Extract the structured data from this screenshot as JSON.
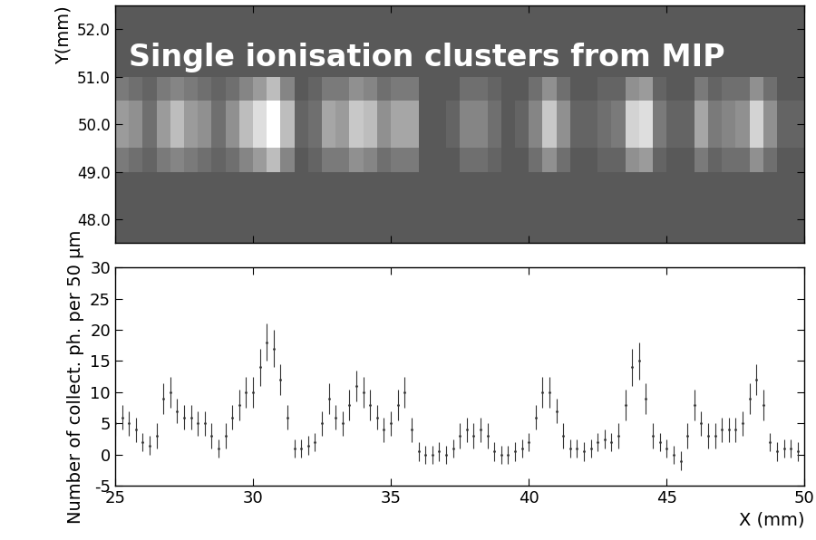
{
  "chart_data": [
    {
      "type": "heatmap",
      "ylabel": "Y(mm)",
      "annotation": "Single ionisation clusters from MIP",
      "x_edges": [
        25,
        25.5,
        26,
        26.5,
        27,
        27.5,
        28,
        28.5,
        29,
        29.5,
        30,
        30.5,
        31,
        31.5,
        32,
        32.5,
        33,
        33.5,
        34,
        34.5,
        35,
        35.5,
        36,
        36.5,
        37,
        37.5,
        38,
        38.5,
        39,
        39.5,
        40,
        40.5,
        41,
        41.5,
        42,
        42.5,
        43,
        43.5,
        44,
        44.5,
        45,
        45.5,
        46,
        46.5,
        47,
        47.5,
        48,
        48.5,
        49,
        49.5,
        50
      ],
      "y_edges": [
        47.5,
        48,
        48.5,
        49,
        49.5,
        50,
        50.5,
        51,
        51.5,
        52,
        52.5
      ],
      "cells": [
        [
          0,
          0,
          0,
          0,
          0,
          0,
          0,
          0,
          0,
          0,
          0,
          0,
          0,
          0,
          0,
          0,
          0,
          0,
          0,
          0,
          0,
          0,
          0,
          0,
          0,
          0,
          0,
          0,
          0,
          0,
          0,
          0,
          0,
          0,
          0,
          0,
          0,
          0,
          0,
          0,
          0,
          0,
          0,
          0,
          0,
          0,
          0,
          0,
          0,
          0
        ],
        [
          0,
          0,
          0,
          0,
          0,
          0,
          0,
          0,
          0,
          0,
          0,
          0,
          0,
          0,
          0,
          0,
          0,
          0,
          0,
          0,
          0,
          0,
          0,
          0,
          0,
          0,
          0,
          0,
          0,
          0,
          0,
          0,
          0,
          0,
          0,
          0,
          0,
          0,
          0,
          0,
          0,
          0,
          0,
          0,
          0,
          0,
          0,
          0,
          0,
          0
        ],
        [
          0,
          0,
          0,
          0,
          0,
          0,
          0,
          0,
          0,
          0,
          0,
          0,
          0,
          0,
          0,
          0,
          0,
          0,
          0,
          0,
          0,
          0,
          0,
          0,
          0,
          0,
          0,
          0,
          0,
          0,
          0,
          0,
          0,
          0,
          0,
          0,
          0,
          0,
          0,
          0,
          0,
          0,
          0,
          0,
          0,
          0,
          0,
          0,
          0,
          0
        ],
        [
          3,
          2,
          1,
          3,
          4,
          3,
          2,
          1,
          2,
          4,
          6,
          9,
          4,
          0,
          1,
          3,
          3,
          5,
          4,
          2,
          3,
          3,
          0,
          0,
          0,
          2,
          2,
          1,
          0,
          0,
          2,
          5,
          2,
          0,
          0,
          1,
          1,
          5,
          6,
          1,
          0,
          0,
          3,
          1,
          2,
          2,
          5,
          2,
          0,
          0
        ],
        [
          6,
          5,
          2,
          6,
          9,
          6,
          5,
          2,
          5,
          9,
          12,
          18,
          9,
          1,
          2,
          7,
          6,
          10,
          9,
          5,
          7,
          7,
          0,
          0,
          1,
          4,
          4,
          2,
          0,
          1,
          4,
          10,
          5,
          1,
          1,
          2,
          3,
          11,
          12,
          3,
          1,
          1,
          7,
          3,
          4,
          5,
          11,
          5,
          1,
          1
        ],
        [
          6,
          5,
          2,
          6,
          9,
          6,
          5,
          2,
          5,
          9,
          12,
          18,
          9,
          1,
          2,
          7,
          6,
          10,
          9,
          5,
          7,
          7,
          0,
          0,
          1,
          4,
          4,
          2,
          0,
          1,
          4,
          10,
          5,
          1,
          1,
          2,
          3,
          11,
          12,
          3,
          1,
          1,
          7,
          3,
          4,
          5,
          11,
          5,
          1,
          1
        ],
        [
          3,
          2,
          1,
          3,
          4,
          3,
          2,
          1,
          2,
          4,
          6,
          9,
          4,
          0,
          1,
          3,
          3,
          5,
          4,
          2,
          3,
          3,
          0,
          0,
          0,
          2,
          2,
          1,
          0,
          0,
          2,
          5,
          2,
          0,
          0,
          1,
          1,
          5,
          6,
          1,
          0,
          0,
          3,
          1,
          2,
          2,
          5,
          2,
          0,
          0
        ],
        [
          0,
          0,
          0,
          0,
          0,
          0,
          0,
          0,
          0,
          0,
          0,
          0,
          0,
          0,
          0,
          0,
          0,
          0,
          0,
          0,
          0,
          0,
          0,
          0,
          0,
          0,
          0,
          0,
          0,
          0,
          0,
          0,
          0,
          0,
          0,
          0,
          0,
          0,
          0,
          0,
          0,
          0,
          0,
          0,
          0,
          0,
          0,
          0,
          0,
          0
        ],
        [
          0,
          0,
          0,
          0,
          0,
          0,
          0,
          0,
          0,
          0,
          0,
          0,
          0,
          0,
          0,
          0,
          0,
          0,
          0,
          0,
          0,
          0,
          0,
          0,
          0,
          0,
          0,
          0,
          0,
          0,
          0,
          0,
          0,
          0,
          0,
          0,
          0,
          0,
          0,
          0,
          0,
          0,
          0,
          0,
          0,
          0,
          0,
          0,
          0,
          0
        ],
        [
          0,
          0,
          0,
          0,
          0,
          0,
          0,
          0,
          0,
          0,
          0,
          0,
          0,
          0,
          0,
          0,
          0,
          0,
          0,
          0,
          0,
          0,
          0,
          0,
          0,
          0,
          0,
          0,
          0,
          0,
          0,
          0,
          0,
          0,
          0,
          0,
          0,
          0,
          0,
          0,
          0,
          0,
          0,
          0,
          0,
          0,
          0,
          0,
          0,
          0
        ]
      ],
      "color_range": [
        -8,
        15
      ],
      "xlim": [
        25,
        50
      ],
      "ylim": [
        47.5,
        52.5
      ],
      "xticks": [
        25,
        30,
        35,
        40,
        45,
        50
      ],
      "yticks": [
        {
          "value": 48,
          "label": "48.0"
        },
        {
          "value": 49,
          "label": "49.0"
        },
        {
          "value": 50,
          "label": "50.0"
        },
        {
          "value": 51,
          "label": "51.0"
        },
        {
          "value": 52,
          "label": "52.0"
        }
      ],
      "tick_labels": "y"
    },
    {
      "type": "errorbar",
      "xlabel": "X (mm)",
      "ylabel": "Number of collect. ph. per 50 µm",
      "color": "#333333",
      "marker": "point",
      "x": [
        25,
        25.25,
        25.5,
        25.75,
        26,
        26.25,
        26.5,
        26.75,
        27,
        27.25,
        27.5,
        27.75,
        28,
        28.25,
        28.5,
        28.75,
        29,
        29.25,
        29.5,
        29.75,
        30,
        30.25,
        30.5,
        30.75,
        31,
        31.25,
        31.5,
        31.75,
        32,
        32.25,
        32.5,
        32.75,
        33,
        33.25,
        33.5,
        33.75,
        34,
        34.25,
        34.5,
        34.75,
        35,
        35.25,
        35.5,
        35.75,
        36,
        36.25,
        36.5,
        36.75,
        37,
        37.25,
        37.5,
        37.75,
        38,
        38.25,
        38.5,
        38.75,
        39,
        39.25,
        39.5,
        39.75,
        40,
        40.25,
        40.5,
        40.75,
        41,
        41.25,
        41.5,
        41.75,
        42,
        42.25,
        42.5,
        42.75,
        43,
        43.25,
        43.5,
        43.75,
        44,
        44.25,
        44.5,
        44.75,
        45,
        45.25,
        45.5,
        45.75,
        46,
        46.25,
        46.5,
        46.75,
        47,
        47.25,
        47.5,
        47.75,
        48,
        48.25,
        48.5,
        48.75,
        49,
        49.25,
        49.5,
        49.75
      ],
      "values": [
        5,
        6,
        5,
        4,
        2,
        1.5,
        3,
        9,
        10,
        7,
        6,
        6,
        5,
        5,
        3,
        1,
        3,
        6,
        8,
        10,
        10,
        14,
        18,
        17,
        12,
        6,
        1,
        1,
        1.5,
        2,
        5,
        9,
        6,
        5,
        8,
        11,
        10,
        8,
        6,
        4,
        5,
        8,
        10,
        4,
        0.5,
        0,
        0,
        0.5,
        0,
        1,
        3,
        4,
        3,
        4,
        3,
        0.5,
        0,
        0,
        0.5,
        1,
        2,
        6,
        10,
        10,
        7,
        3,
        1,
        1,
        0.5,
        1,
        2,
        2.5,
        2,
        3,
        8,
        14,
        15,
        9,
        3,
        2,
        1,
        0,
        -1,
        3,
        8,
        5,
        3,
        3,
        4,
        4,
        4,
        5,
        9,
        12,
        8,
        2,
        0.5,
        1,
        1,
        0.5
      ],
      "errors": [
        2,
        2,
        2,
        2,
        1.5,
        1.5,
        2,
        2.5,
        2.5,
        2,
        2,
        2,
        2,
        2,
        2,
        1.5,
        2,
        2,
        2.5,
        2.5,
        2.5,
        3,
        3,
        3,
        2.5,
        2,
        1.5,
        1.5,
        1.5,
        1.5,
        2,
        2.5,
        2,
        2,
        2.5,
        2.5,
        2.5,
        2.5,
        2,
        2,
        2,
        2.5,
        2.5,
        2,
        1.5,
        1.5,
        1.5,
        1.5,
        1.5,
        1.5,
        2,
        2,
        2,
        2,
        2,
        1.5,
        1.5,
        1.5,
        1.5,
        1.5,
        1.5,
        2,
        2.5,
        2.5,
        2,
        2,
        1.5,
        1.5,
        1.5,
        1.5,
        1.5,
        1.5,
        1.5,
        2,
        2.5,
        3,
        3,
        2.5,
        2,
        1.5,
        1.5,
        1.5,
        1.5,
        2,
        2.5,
        2,
        2,
        2,
        2,
        2,
        2,
        2,
        2.5,
        2.5,
        2.5,
        1.5,
        1.5,
        1.5,
        1.5,
        1.5
      ],
      "xlim": [
        25,
        50
      ],
      "ylim": [
        -5,
        30
      ],
      "xticks": [
        25,
        30,
        35,
        40,
        45,
        50
      ],
      "yticks": [
        -5,
        0,
        5,
        10,
        15,
        20,
        25,
        30
      ]
    }
  ]
}
